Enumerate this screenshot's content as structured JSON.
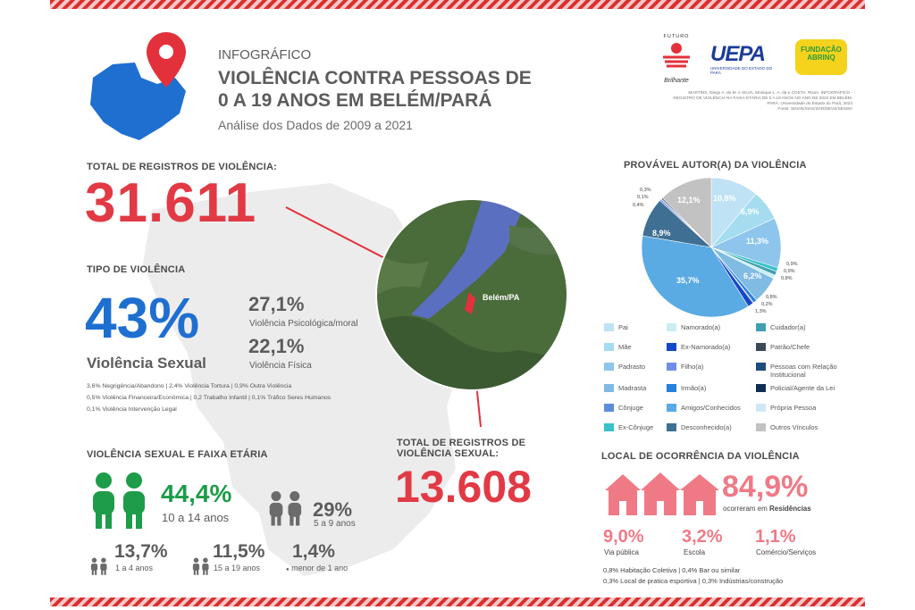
{
  "header": {
    "kicker": "INFOGRÁFICO",
    "title_line1": "VIOLÊNCIA CONTRA PESSOAS DE",
    "title_line2": "0 A 19 ANOS EM BELÉM/PARÁ",
    "subtitle": "Análise dos Dados de 2009 a 2021"
  },
  "logos": {
    "futuro_top": "FUTURO",
    "futuro_script": "Brilhante",
    "uepa": "UEPA",
    "uepa_sub": "UNIVERSIDADE DO ESTADO DO PARÁ",
    "abrinq_1": "FUNDAÇÃO",
    "abrinq_2": "ABRINQ"
  },
  "citation": {
    "line1": "MARTINS, Diego A. de M. e SILVA, Monique L. A. da e COSTA, Rison. INFOGRÁFICO -",
    "line2": "REGISTRO DE VIOLÊNCIA NA FAIXA ETÁRIA DE 0 A 19 ANOS NO ANO DE 2022 EM BELÉM,",
    "line3": "PARÁ. Universidade do Estado do Pará, 2023",
    "line4": "Fonte: SINAN/SIAS/SAR/DEVS/SESMA"
  },
  "total": {
    "label": "TOTAL DE REGISTROS DE VIOLÊNCIA:",
    "value": "31.611"
  },
  "tipo": {
    "label": "TIPO DE VIOLÊNCIA",
    "main_pct": "43%",
    "main_label": "Violência Sexual",
    "psi_pct": "27,1%",
    "psi_label": "Violência Psicológica/moral",
    "fis_pct": "22,1%",
    "fis_label": "Violência Física",
    "details_1": "3,6% Negrigência/Abandono | 2,4% Violência Tortura | 0,9% Outra Violência",
    "details_2": "0,5% Violência Financeira/Econômica | 0,2 Trabalho Infantil | 0,1% Tráfico Seres Humanos",
    "details_3": "0,1% Violência Intervenção Legal"
  },
  "map": {
    "city_label": "Belém/PA"
  },
  "sexual_total": {
    "label_line1": "TOTAL DE REGISTROS DE",
    "label_line2": "VIOLÊNCIA SEXUAL:",
    "value": "13.608"
  },
  "faixa": {
    "label": "VIOLÊNCIA SEXUAL E FAIXA ETÁRIA",
    "g1_pct": "44,4%",
    "g1_label": "10 a 14 anos",
    "g2_pct": "29%",
    "g2_label": "5 a 9 anos",
    "g3_pct": "13,7%",
    "g3_label": "1 a 4 anos",
    "g4_pct": "11,5%",
    "g4_label": "15 a 19 anos",
    "g5_pct": "1,4%",
    "g5_label": "menor de 1 ano"
  },
  "autor": {
    "label": "PROVÁVEL AUTOR(A) DA VIOLÊNCIA",
    "legend": [
      {
        "name": "Pai",
        "color": "#bfe2f5"
      },
      {
        "name": "Namorado(a)",
        "color": "#c9eef2"
      },
      {
        "name": "Cuidador(a)",
        "color": "#3fa0b0"
      },
      {
        "name": "Mãe",
        "color": "#a5dcef"
      },
      {
        "name": "Ex-Namorado(a)",
        "color": "#1547c9"
      },
      {
        "name": "Patrão/Chefe",
        "color": "#3b4a58"
      },
      {
        "name": "Padrasto",
        "color": "#8ec5ec"
      },
      {
        "name": "Filho(a)",
        "color": "#6f8fe6"
      },
      {
        "name": "Pessoas com Relação Institucional",
        "color": "#1d4d7c"
      },
      {
        "name": "Madrasta",
        "color": "#7fbbe3"
      },
      {
        "name": "Irmão(a)",
        "color": "#2680d8"
      },
      {
        "name": "Policial/Agente da Lei",
        "color": "#0f2f55"
      },
      {
        "name": "Cônjuge",
        "color": "#5b8ed6"
      },
      {
        "name": "Amigos/Conhecidos",
        "color": "#5aaae3"
      },
      {
        "name": "Própria Pessoa",
        "color": "#cfe8f7"
      },
      {
        "name": "Ex-Cônjuge",
        "color": "#37c3c9"
      },
      {
        "name": "Desconhecido(a)",
        "color": "#3f6f93"
      },
      {
        "name": "Outros Vínculos",
        "color": "#c2c2c2"
      }
    ]
  },
  "pie": {
    "labels": {
      "l1": "12,1%",
      "l2": "10,8%",
      "l3": "6,9%",
      "l4": "11,3%",
      "l5": "8,9%",
      "l6": "35,7%",
      "l7": "6,2%",
      "s1": "0,3%",
      "s2": "0,1%",
      "s3": "0,4%",
      "r1": "0,9%",
      "r2": "0,9%",
      "r3": "0,8%",
      "b1": "0,8%",
      "b2": "0,2%",
      "b3": "1,3%"
    }
  },
  "local": {
    "label": "LOCAL DE OCORRÊNCIA DA VIOLÊNCIA",
    "main_pct": "84,9%",
    "main_label_a": "ocorreram em ",
    "main_label_b": "Residências",
    "v1_pct": "9,0%",
    "v1_label": "Via pública",
    "v2_pct": "3,2%",
    "v2_label": "Escola",
    "v3_pct": "1,1%",
    "v3_label": "Comércio/Serviços",
    "note1": "0,8% Habitação Coletiva | 0,4% Bar ou similar",
    "note2": "0,3% Local de pratica esportiva | 0,3% Indústrias/construção"
  }
}
